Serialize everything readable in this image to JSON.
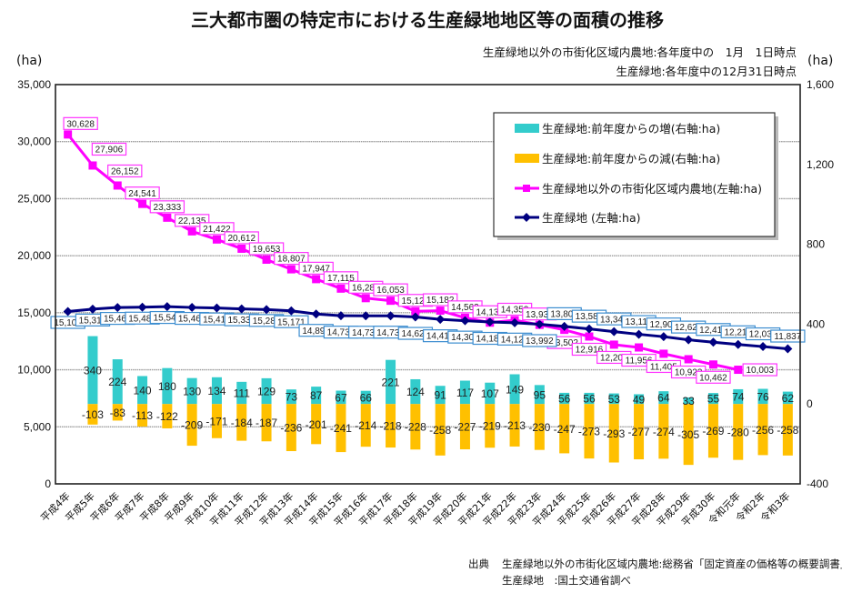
{
  "chart_data": {
    "type": "bar",
    "title": "三大都市圏の特定市における生産緑地地区等の面積の推移",
    "subtitle_lines": [
      "生産緑地以外の市街化区域内農地:各年度中の　1月　1日時点",
      "生産緑地:各年度中の12月31日時点"
    ],
    "categories": [
      "平成4年",
      "平成5年",
      "平成6年",
      "平成7年",
      "平成8年",
      "平成9年",
      "平成10年",
      "平成11年",
      "平成12年",
      "平成13年",
      "平成14年",
      "平成15年",
      "平成16年",
      "平成17年",
      "平成18年",
      "平成19年",
      "平成20年",
      "平成21年",
      "平成22年",
      "平成23年",
      "平成24年",
      "平成25年",
      "平成26年",
      "平成27年",
      "平成28年",
      "平成29年",
      "平成30年",
      "令和元年",
      "令和2年",
      "令和3年"
    ],
    "series": [
      {
        "name": "生産緑地:前年度からの増(右軸:ha)",
        "type": "bar",
        "axis": "right",
        "color": "#33CCCC",
        "values": [
          null,
          340,
          224,
          140,
          180,
          130,
          134,
          111,
          129,
          73,
          87,
          67,
          66,
          221,
          124,
          91,
          117,
          107,
          149,
          95,
          56,
          56,
          53,
          49,
          64,
          33,
          55,
          74,
          76,
          62
        ]
      },
      {
        "name": "生産緑地:前年度からの減(右軸:ha)",
        "type": "bar",
        "axis": "right",
        "color": "#FFC000",
        "values": [
          null,
          -103,
          -83,
          -113,
          -122,
          -209,
          -171,
          -184,
          -187,
          -236,
          -201,
          -241,
          -214,
          -218,
          -228,
          -258,
          -227,
          -219,
          -213,
          -230,
          -247,
          -273,
          -293,
          -277,
          -274,
          -305,
          -269,
          -280,
          -256,
          -258
        ]
      },
      {
        "name": "生産緑地以外の市街化区域内農地(左軸:ha)",
        "type": "line",
        "axis": "left",
        "color": "#FF00FF",
        "marker": "square",
        "values": [
          30628,
          27906,
          26152,
          24541,
          23333,
          22135,
          21422,
          20612,
          19653,
          18807,
          17947,
          17115,
          16280,
          16053,
          15127,
          15182,
          14562,
          14132,
          14352,
          13938,
          13502,
          12916,
          12203,
          11956,
          11405,
          10923,
          10462,
          10003,
          null,
          null
        ]
      },
      {
        "name": "生産緑地 (左軸:ha)",
        "type": "line",
        "axis": "left",
        "color": "#000080",
        "marker": "diamond",
        "values": [
          15109,
          15319,
          15460,
          15485,
          15541,
          15462,
          15415,
          15337,
          15281,
          15171,
          14892,
          14738,
          14731,
          14734,
          14626,
          14419,
          14300,
          14189,
          14125,
          13992,
          13801,
          13583,
          13341,
          13110,
          12901,
          12629,
          12415,
          12214,
          12034,
          11837
        ]
      }
    ],
    "left_axis": {
      "label": "(ha)",
      "range": [
        0,
        35000
      ],
      "ticks": [
        0,
        5000,
        10000,
        15000,
        20000,
        25000,
        30000,
        35000
      ],
      "tick_labels": [
        "0",
        "5,000",
        "10,000",
        "15,000",
        "20,000",
        "25,000",
        "30,000",
        "35,000"
      ]
    },
    "right_axis": {
      "label": "(ha)",
      "range": [
        -400,
        1600
      ],
      "ticks": [
        -400,
        0,
        400,
        800,
        1200,
        1600
      ],
      "tick_labels": [
        "-400",
        "0",
        "400",
        "800",
        "1,200",
        "1,600"
      ]
    },
    "xlabel": "",
    "grid": true,
    "legend_position": "top-right",
    "label_colors": {
      "farmland_box": "#FF33FF",
      "green_box": "#3C8DD0"
    },
    "source": {
      "label": "出典",
      "lines": [
        "生産緑地以外の市街化区域内農地:総務省「固定資産の価格等の概要調書」",
        "生産緑地　:国土交通省調べ"
      ]
    }
  }
}
